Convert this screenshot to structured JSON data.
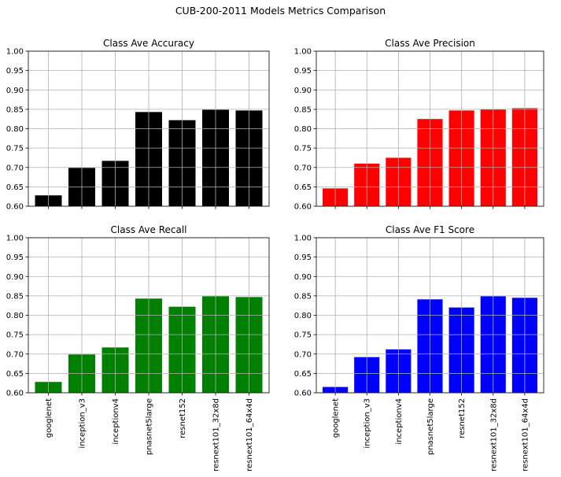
{
  "figure_title": "CUB-200-2011 Models Metrics Comparison",
  "chart_data": [
    {
      "type": "bar",
      "title": "Class Ave Accuracy",
      "categories": [
        "googlenet",
        "inception_v3",
        "inceptionv4",
        "pnasnet5large",
        "resnet152",
        "resnext101_32x8d",
        "resnext101_64x4d"
      ],
      "values": [
        0.628,
        0.699,
        0.717,
        0.843,
        0.822,
        0.849,
        0.847
      ],
      "ylim": [
        0.6,
        1.0
      ],
      "yticks": [
        "0.60",
        "0.65",
        "0.70",
        "0.75",
        "0.80",
        "0.85",
        "0.90",
        "0.95",
        "1.00"
      ],
      "color": "#000000",
      "grid": true,
      "show_xticklabels": false
    },
    {
      "type": "bar",
      "title": "Class Ave Precision",
      "categories": [
        "googlenet",
        "inception_v3",
        "inceptionv4",
        "pnasnet5large",
        "resnet152",
        "resnext101_32x8d",
        "resnext101_64x4d"
      ],
      "values": [
        0.646,
        0.71,
        0.725,
        0.825,
        0.847,
        0.85,
        0.853
      ],
      "ylim": [
        0.6,
        1.0
      ],
      "yticks": [
        "0.60",
        "0.65",
        "0.70",
        "0.75",
        "0.80",
        "0.85",
        "0.90",
        "0.95",
        "1.00"
      ],
      "color": "#ff0000",
      "grid": true,
      "show_xticklabels": false
    },
    {
      "type": "bar",
      "title": "Class Ave Recall",
      "categories": [
        "googlenet",
        "inception_v3",
        "inceptionv4",
        "pnasnet5large",
        "resnet152",
        "resnext101_32x8d",
        "resnext101_64x4d"
      ],
      "values": [
        0.628,
        0.699,
        0.717,
        0.843,
        0.822,
        0.849,
        0.847
      ],
      "ylim": [
        0.6,
        1.0
      ],
      "yticks": [
        "0.60",
        "0.65",
        "0.70",
        "0.75",
        "0.80",
        "0.85",
        "0.90",
        "0.95",
        "1.00"
      ],
      "color": "#008000",
      "grid": true,
      "show_xticklabels": true
    },
    {
      "type": "bar",
      "title": "Class Ave F1 Score",
      "categories": [
        "googlenet",
        "inception_v3",
        "inceptionv4",
        "pnasnet5large",
        "resnet152",
        "resnext101_32x8d",
        "resnext101_64x4d"
      ],
      "values": [
        0.615,
        0.692,
        0.712,
        0.841,
        0.82,
        0.849,
        0.845
      ],
      "ylim": [
        0.6,
        1.0
      ],
      "yticks": [
        "0.60",
        "0.65",
        "0.70",
        "0.75",
        "0.80",
        "0.85",
        "0.90",
        "0.95",
        "1.00"
      ],
      "color": "#0000ff",
      "grid": true,
      "show_xticklabels": true
    }
  ]
}
